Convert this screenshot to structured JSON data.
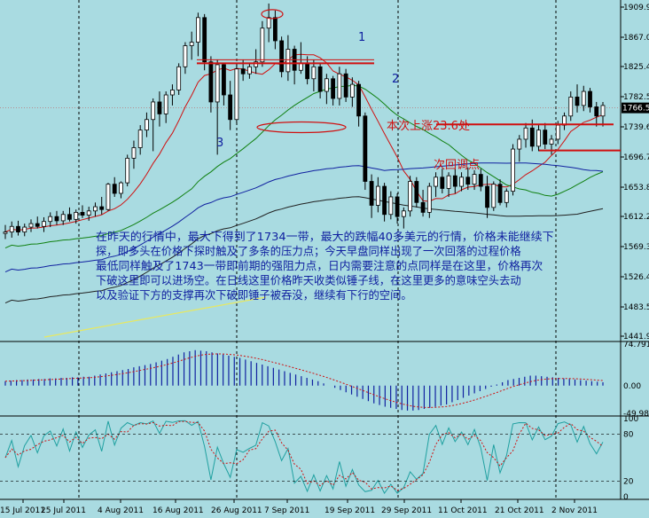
{
  "chart_data": {
    "type": "candlestick",
    "price_axis": {
      "ticks": [
        "1909.90",
        "1867.00",
        "1825.40",
        "1782.50",
        "1739.60",
        "1696.70",
        "1653.80",
        "1612.20",
        "1569.30",
        "1526.40",
        "1483.50",
        "1441.90"
      ],
      "current": "1766.55",
      "range": [
        1441.9,
        1909.9
      ]
    },
    "date_labels": [
      "15 Jul 2011",
      "25 Jul 2011",
      "4 Aug 2011",
      "16 Aug 2011",
      "26 Aug 2011",
      "7 Sep 2011",
      "19 Sep 2011",
      "29 Sep 2011",
      "11 Oct 2011",
      "21 Oct 2011",
      "2 Nov 2011"
    ],
    "candles": [
      {
        "o": 1588,
        "h": 1600,
        "l": 1580,
        "c": 1590
      },
      {
        "o": 1590,
        "h": 1605,
        "l": 1582,
        "c": 1598
      },
      {
        "o": 1598,
        "h": 1606,
        "l": 1585,
        "c": 1590
      },
      {
        "o": 1590,
        "h": 1602,
        "l": 1584,
        "c": 1597
      },
      {
        "o": 1597,
        "h": 1608,
        "l": 1590,
        "c": 1602
      },
      {
        "o": 1602,
        "h": 1612,
        "l": 1595,
        "c": 1598
      },
      {
        "o": 1598,
        "h": 1611,
        "l": 1590,
        "c": 1605
      },
      {
        "o": 1605,
        "h": 1618,
        "l": 1597,
        "c": 1612
      },
      {
        "o": 1612,
        "h": 1620,
        "l": 1600,
        "c": 1606
      },
      {
        "o": 1606,
        "h": 1620,
        "l": 1600,
        "c": 1615
      },
      {
        "o": 1615,
        "h": 1625,
        "l": 1605,
        "c": 1608
      },
      {
        "o": 1608,
        "h": 1622,
        "l": 1602,
        "c": 1618
      },
      {
        "o": 1618,
        "h": 1628,
        "l": 1610,
        "c": 1614
      },
      {
        "o": 1614,
        "h": 1626,
        "l": 1606,
        "c": 1620
      },
      {
        "o": 1620,
        "h": 1632,
        "l": 1612,
        "c": 1626
      },
      {
        "o": 1626,
        "h": 1640,
        "l": 1615,
        "c": 1622
      },
      {
        "o": 1622,
        "h": 1660,
        "l": 1620,
        "c": 1658
      },
      {
        "o": 1658,
        "h": 1668,
        "l": 1640,
        "c": 1645
      },
      {
        "o": 1645,
        "h": 1662,
        "l": 1638,
        "c": 1660
      },
      {
        "o": 1660,
        "h": 1700,
        "l": 1655,
        "c": 1695
      },
      {
        "o": 1695,
        "h": 1720,
        "l": 1680,
        "c": 1710
      },
      {
        "o": 1710,
        "h": 1742,
        "l": 1700,
        "c": 1735
      },
      {
        "o": 1735,
        "h": 1760,
        "l": 1725,
        "c": 1750
      },
      {
        "o": 1750,
        "h": 1780,
        "l": 1705,
        "c": 1775
      },
      {
        "o": 1775,
        "h": 1790,
        "l": 1740,
        "c": 1758
      },
      {
        "o": 1758,
        "h": 1790,
        "l": 1745,
        "c": 1785
      },
      {
        "o": 1785,
        "h": 1800,
        "l": 1770,
        "c": 1792
      },
      {
        "o": 1792,
        "h": 1830,
        "l": 1785,
        "c": 1825
      },
      {
        "o": 1825,
        "h": 1860,
        "l": 1815,
        "c": 1855
      },
      {
        "o": 1855,
        "h": 1875,
        "l": 1835,
        "c": 1860
      },
      {
        "o": 1860,
        "h": 1902,
        "l": 1840,
        "c": 1895
      },
      {
        "o": 1895,
        "h": 1900,
        "l": 1820,
        "c": 1832
      },
      {
        "o": 1832,
        "h": 1840,
        "l": 1760,
        "c": 1775
      },
      {
        "o": 1775,
        "h": 1835,
        "l": 1700,
        "c": 1828
      },
      {
        "o": 1828,
        "h": 1830,
        "l": 1770,
        "c": 1785
      },
      {
        "o": 1785,
        "h": 1805,
        "l": 1735,
        "c": 1750
      },
      {
        "o": 1750,
        "h": 1830,
        "l": 1745,
        "c": 1822
      },
      {
        "o": 1822,
        "h": 1835,
        "l": 1805,
        "c": 1815
      },
      {
        "o": 1815,
        "h": 1830,
        "l": 1808,
        "c": 1825
      },
      {
        "o": 1825,
        "h": 1850,
        "l": 1815,
        "c": 1832
      },
      {
        "o": 1832,
        "h": 1890,
        "l": 1825,
        "c": 1880
      },
      {
        "o": 1880,
        "h": 1915,
        "l": 1860,
        "c": 1895
      },
      {
        "o": 1895,
        "h": 1905,
        "l": 1850,
        "c": 1862
      },
      {
        "o": 1862,
        "h": 1868,
        "l": 1810,
        "c": 1818
      },
      {
        "o": 1818,
        "h": 1870,
        "l": 1805,
        "c": 1850
      },
      {
        "o": 1850,
        "h": 1855,
        "l": 1800,
        "c": 1820
      },
      {
        "o": 1820,
        "h": 1860,
        "l": 1815,
        "c": 1830
      },
      {
        "o": 1830,
        "h": 1840,
        "l": 1800,
        "c": 1808
      },
      {
        "o": 1808,
        "h": 1835,
        "l": 1790,
        "c": 1825
      },
      {
        "o": 1825,
        "h": 1830,
        "l": 1780,
        "c": 1790
      },
      {
        "o": 1790,
        "h": 1815,
        "l": 1772,
        "c": 1808
      },
      {
        "o": 1808,
        "h": 1812,
        "l": 1770,
        "c": 1780
      },
      {
        "o": 1780,
        "h": 1825,
        "l": 1770,
        "c": 1815
      },
      {
        "o": 1815,
        "h": 1822,
        "l": 1775,
        "c": 1782
      },
      {
        "o": 1782,
        "h": 1810,
        "l": 1768,
        "c": 1800
      },
      {
        "o": 1800,
        "h": 1805,
        "l": 1740,
        "c": 1755
      },
      {
        "o": 1755,
        "h": 1760,
        "l": 1650,
        "c": 1662
      },
      {
        "o": 1662,
        "h": 1672,
        "l": 1610,
        "c": 1628
      },
      {
        "o": 1628,
        "h": 1668,
        "l": 1618,
        "c": 1655
      },
      {
        "o": 1655,
        "h": 1660,
        "l": 1605,
        "c": 1615
      },
      {
        "o": 1615,
        "h": 1648,
        "l": 1608,
        "c": 1640
      },
      {
        "o": 1640,
        "h": 1645,
        "l": 1602,
        "c": 1612
      },
      {
        "o": 1612,
        "h": 1625,
        "l": 1595,
        "c": 1620
      },
      {
        "o": 1620,
        "h": 1670,
        "l": 1612,
        "c": 1662
      },
      {
        "o": 1662,
        "h": 1668,
        "l": 1625,
        "c": 1632
      },
      {
        "o": 1632,
        "h": 1650,
        "l": 1612,
        "c": 1618
      },
      {
        "o": 1618,
        "h": 1660,
        "l": 1610,
        "c": 1655
      },
      {
        "o": 1655,
        "h": 1675,
        "l": 1640,
        "c": 1668
      },
      {
        "o": 1668,
        "h": 1680,
        "l": 1645,
        "c": 1652
      },
      {
        "o": 1652,
        "h": 1675,
        "l": 1640,
        "c": 1670
      },
      {
        "o": 1670,
        "h": 1680,
        "l": 1645,
        "c": 1655
      },
      {
        "o": 1655,
        "h": 1675,
        "l": 1648,
        "c": 1668
      },
      {
        "o": 1668,
        "h": 1682,
        "l": 1650,
        "c": 1658
      },
      {
        "o": 1658,
        "h": 1678,
        "l": 1650,
        "c": 1672
      },
      {
        "o": 1672,
        "h": 1680,
        "l": 1648,
        "c": 1655
      },
      {
        "o": 1655,
        "h": 1670,
        "l": 1610,
        "c": 1625
      },
      {
        "o": 1625,
        "h": 1662,
        "l": 1620,
        "c": 1658
      },
      {
        "o": 1658,
        "h": 1665,
        "l": 1628,
        "c": 1632
      },
      {
        "o": 1632,
        "h": 1652,
        "l": 1625,
        "c": 1648
      },
      {
        "o": 1648,
        "h": 1715,
        "l": 1642,
        "c": 1708
      },
      {
        "o": 1708,
        "h": 1728,
        "l": 1690,
        "c": 1722
      },
      {
        "o": 1722,
        "h": 1745,
        "l": 1710,
        "c": 1738
      },
      {
        "o": 1738,
        "h": 1750,
        "l": 1705,
        "c": 1712
      },
      {
        "o": 1712,
        "h": 1742,
        "l": 1705,
        "c": 1735
      },
      {
        "o": 1735,
        "h": 1745,
        "l": 1708,
        "c": 1715
      },
      {
        "o": 1715,
        "h": 1728,
        "l": 1700,
        "c": 1722
      },
      {
        "o": 1722,
        "h": 1748,
        "l": 1715,
        "c": 1742
      },
      {
        "o": 1742,
        "h": 1760,
        "l": 1735,
        "c": 1755
      },
      {
        "o": 1755,
        "h": 1790,
        "l": 1748,
        "c": 1782
      },
      {
        "o": 1782,
        "h": 1800,
        "l": 1760,
        "c": 1770
      },
      {
        "o": 1770,
        "h": 1798,
        "l": 1762,
        "c": 1790
      },
      {
        "o": 1790,
        "h": 1795,
        "l": 1760,
        "c": 1768
      },
      {
        "o": 1768,
        "h": 1775,
        "l": 1740,
        "c": 1755
      },
      {
        "o": 1755,
        "h": 1775,
        "l": 1740,
        "c": 1770
      }
    ],
    "annotations": {
      "rise_label": "本次上涨23.6处",
      "pullback_label": "次回调点",
      "num_1": "1",
      "num_2": "2",
      "num_3": "3"
    },
    "commentary": [
      "在昨天的行情中，最大下得到了1734一带，最大的跌幅40多美元的行情，价格未能继续下",
      "探，即多头在价格下探时触及了多条的压力点；今天早盘同样出现了一次回落的过程价格",
      "最低同样触及了1743一带即前期的强阻力点，日内需要注意的点同样是在这里，价格再次",
      "下破这里即可以进场空。在日线这里价格昨天收类似锤子线，在这里更多的意味空头去动",
      "以及验证下方的支撑再次下破即锤子被吞没，继续有下行的空间。"
    ],
    "macd": {
      "ticks": [
        "74.791",
        "0.00",
        "-49.989"
      ],
      "range": [
        -49.989,
        74.791
      ],
      "values": [
        8,
        9,
        10,
        10,
        11,
        11,
        12,
        12,
        13,
        13,
        14,
        14,
        15,
        15,
        16,
        16,
        18,
        20,
        22,
        24,
        26,
        28,
        30,
        33,
        35,
        37,
        39,
        42,
        45,
        48,
        52,
        56,
        60,
        62,
        64,
        63,
        62,
        60,
        58,
        56,
        54,
        52,
        50,
        47,
        44,
        41,
        38,
        35,
        32,
        29,
        26,
        23,
        20,
        17,
        14,
        11,
        8,
        4,
        0,
        -4,
        -8,
        -12,
        -16,
        -20,
        -24,
        -28,
        -32,
        -35,
        -38,
        -40,
        -42,
        -44,
        -45,
        -45,
        -44,
        -42,
        -40,
        -38,
        -36,
        -34,
        -30,
        -26,
        -22,
        -18,
        -14,
        -10,
        -6,
        -2,
        2,
        6,
        10,
        12,
        14,
        16,
        18,
        18,
        17,
        16,
        15,
        14,
        13,
        12,
        11,
        10,
        9,
        8,
        7,
        6
      ]
    },
    "stoch": {
      "ticks": [
        "100",
        "80",
        "20",
        "0"
      ],
      "range": [
        0,
        100
      ]
    }
  }
}
